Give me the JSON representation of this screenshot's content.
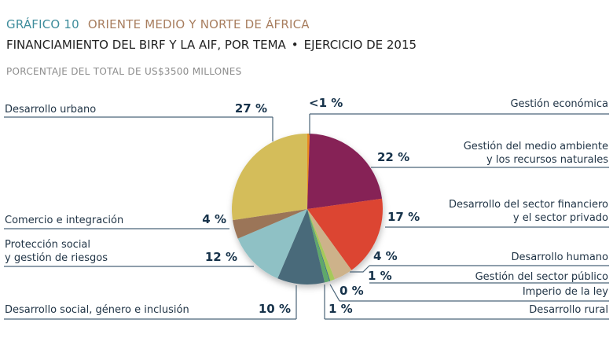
{
  "header": {
    "figure_number": "GRÁFICO 10",
    "region": "ORIENTE MEDIO Y NORTE DE ÁFRICA",
    "title": "FINANCIAMIENTO DEL BIRF Y LA AIF, POR TEMA",
    "bullet": "•",
    "fiscal_year": "EJERCICIO DE 2015",
    "subtitle": "PORCENTAJE DEL TOTAL DE US$3500 MILLONES"
  },
  "chart_data": {
    "type": "pie",
    "title": "FINANCIAMIENTO DEL BIRF Y LA AIF, POR TEMA • EJERCICIO DE 2015",
    "subtitle": "PORCENTAJE DEL TOTAL DE US$3500 MILLONES",
    "total": "US$3500 millones",
    "start": "top, clockwise",
    "slices": [
      {
        "name": "Gestión económica",
        "label_lines": [
          "Gestión económica"
        ],
        "value": 0.5,
        "display": "<1 %",
        "color": "#e98a23",
        "side": "right"
      },
      {
        "name": "Gestión del medio ambiente y los recursos naturales",
        "label_lines": [
          "Gestión del medio ambiente",
          "y los recursos naturales"
        ],
        "value": 22,
        "display": "22 %",
        "color": "#862456",
        "side": "right"
      },
      {
        "name": "Desarrollo del sector financiero y el sector privado",
        "label_lines": [
          "Desarrollo del sector financiero",
          "y el sector privado"
        ],
        "value": 17,
        "display": "17 %",
        "color": "#dc4530",
        "side": "right"
      },
      {
        "name": "Desarrollo humano",
        "label_lines": [
          "Desarrollo humano"
        ],
        "value": 4,
        "display": "4 %",
        "color": "#cdb28a",
        "side": "right"
      },
      {
        "name": "Gestión del sector público",
        "label_lines": [
          "Gestión del sector público"
        ],
        "value": 1,
        "display": "1 %",
        "color": "#a6c95a",
        "side": "right"
      },
      {
        "name": "Imperio de la ley",
        "label_lines": [
          "Imperio de la ley"
        ],
        "value": 0.2,
        "display": "0 %",
        "color": "#3b6f86",
        "side": "right"
      },
      {
        "name": "Desarrollo rural",
        "label_lines": [
          "Desarrollo rural"
        ],
        "value": 1,
        "display": "1 %",
        "color": "#5fa86b",
        "side": "right"
      },
      {
        "name": "Desarrollo social, género e inclusión",
        "label_lines": [
          "Desarrollo social, género e inclusión"
        ],
        "value": 10,
        "display": "10 %",
        "color": "#4a6a7a",
        "side": "left"
      },
      {
        "name": "Protección social y gestión de riesgos",
        "label_lines": [
          "Protección social",
          "y gestión de riesgos"
        ],
        "value": 12,
        "display": "12 %",
        "color": "#8fc1c5",
        "side": "left"
      },
      {
        "name": "Comercio e integración",
        "label_lines": [
          "Comercio e integración"
        ],
        "value": 4,
        "display": "4 %",
        "color": "#9b7559",
        "side": "left"
      },
      {
        "name": "Desarrollo urbano",
        "label_lines": [
          "Desarrollo urbano"
        ],
        "value": 27,
        "display": "27 %",
        "color": "#d4bd5a",
        "side": "left"
      }
    ]
  }
}
